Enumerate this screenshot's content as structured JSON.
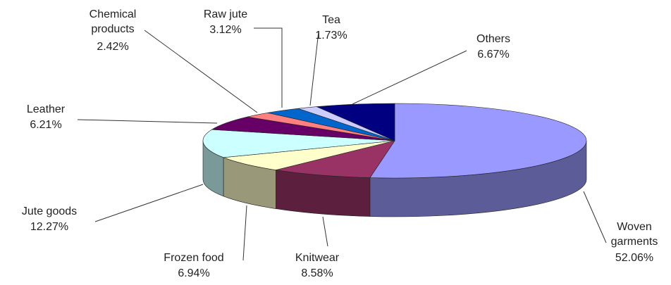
{
  "chart_data": {
    "type": "pie3d",
    "categories": [
      "Woven garments",
      "Knitwear",
      "Frozen food",
      "Jute goods",
      "Leather",
      "Chemical products",
      "Raw jute",
      "Tea",
      "Others"
    ],
    "values": [
      52.06,
      8.58,
      6.94,
      12.27,
      6.21,
      2.42,
      3.12,
      1.73,
      6.67
    ],
    "value_labels": [
      "52.06%",
      "8.58%",
      "6.94%",
      "12.27%",
      "6.21%",
      "2.42%",
      "3.12%",
      "1.73%",
      "6.67%"
    ],
    "colors": [
      "#9999ff",
      "#993366",
      "#ffffcc",
      "#ccffff",
      "#660066",
      "#ff8080",
      "#0066cc",
      "#ccccff",
      "#000080"
    ]
  }
}
